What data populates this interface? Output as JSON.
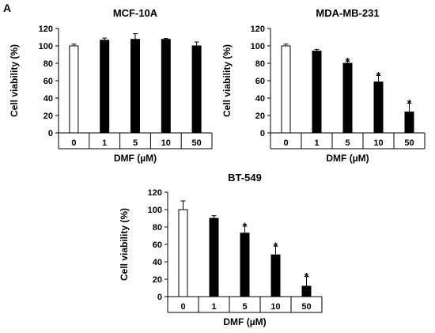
{
  "panel_label": "A",
  "chart_data": [
    {
      "type": "bar",
      "title": "MCF-10A",
      "xlabel": "DMF (µM)",
      "ylabel": "Cell viability (%)",
      "categories": [
        "0",
        "1",
        "5",
        "10",
        "50"
      ],
      "values": [
        100,
        106.5,
        107.5,
        107.5,
        100
      ],
      "errors": [
        2,
        2.5,
        6.5,
        1,
        4.5
      ],
      "significance": [
        "",
        "",
        "",
        "",
        ""
      ],
      "bar_fills": [
        "#ffffff",
        "#000000",
        "#000000",
        "#000000",
        "#000000"
      ],
      "ylim": [
        0,
        120
      ],
      "yticks": [
        0,
        20,
        40,
        60,
        80,
        100,
        120
      ],
      "grid": false,
      "legend": "none"
    },
    {
      "type": "bar",
      "title": "MDA-MB-231",
      "xlabel": "DMF (µM)",
      "ylabel": "Cell viability (%)",
      "categories": [
        "0",
        "1",
        "5",
        "10",
        "50"
      ],
      "values": [
        100,
        94,
        80,
        58.5,
        24
      ],
      "errors": [
        2,
        2,
        2.5,
        7.5,
        10
      ],
      "significance": [
        "",
        "",
        "*",
        "*",
        "*"
      ],
      "bar_fills": [
        "#ffffff",
        "#000000",
        "#000000",
        "#000000",
        "#000000"
      ],
      "ylim": [
        0,
        120
      ],
      "yticks": [
        0,
        20,
        40,
        60,
        80,
        100,
        120
      ],
      "grid": false,
      "legend": "none"
    },
    {
      "type": "bar",
      "title": "BT-549",
      "xlabel": "DMF (µM)",
      "ylabel": "Cell viability (%)",
      "categories": [
        "0",
        "1",
        "5",
        "10",
        "50"
      ],
      "values": [
        100,
        90,
        73,
        48,
        12
      ],
      "errors": [
        10,
        3,
        8,
        10,
        11
      ],
      "significance": [
        "",
        "",
        "*",
        "*",
        "*"
      ],
      "bar_fills": [
        "#ffffff",
        "#000000",
        "#000000",
        "#000000",
        "#000000"
      ],
      "ylim": [
        0,
        120
      ],
      "yticks": [
        0,
        20,
        40,
        60,
        80,
        100,
        120
      ],
      "grid": false,
      "legend": "none"
    }
  ]
}
